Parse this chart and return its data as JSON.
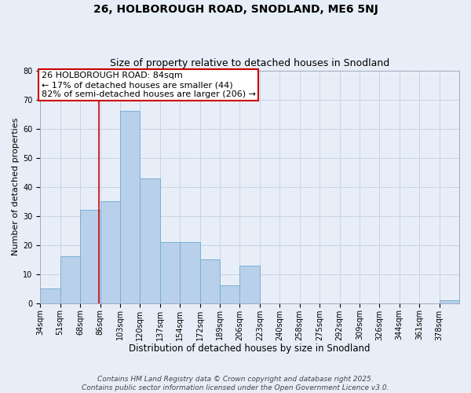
{
  "title": "26, HOLBOROUGH ROAD, SNODLAND, ME6 5NJ",
  "subtitle": "Size of property relative to detached houses in Snodland",
  "xlabel": "Distribution of detached houses by size in Snodland",
  "ylabel": "Number of detached properties",
  "bar_left_edges": [
    34,
    51,
    68,
    85,
    102,
    119,
    136,
    153,
    170,
    187,
    204,
    221,
    238,
    255,
    272,
    289,
    306,
    323,
    340,
    357,
    374
  ],
  "bar_heights": [
    5,
    16,
    32,
    35,
    66,
    43,
    21,
    21,
    15,
    6,
    13,
    0,
    0,
    0,
    0,
    0,
    0,
    0,
    0,
    0,
    1
  ],
  "bin_width": 17,
  "bar_color": "#b8d0ea",
  "bar_edge_color": "#7aafd4",
  "vline_x": 84,
  "vline_color": "#cc0000",
  "ylim": [
    0,
    80
  ],
  "xlim": [
    34,
    391
  ],
  "yticks": [
    0,
    10,
    20,
    30,
    40,
    50,
    60,
    70,
    80
  ],
  "xtick_labels": [
    "34sqm",
    "51sqm",
    "68sqm",
    "86sqm",
    "103sqm",
    "120sqm",
    "137sqm",
    "154sqm",
    "172sqm",
    "189sqm",
    "206sqm",
    "223sqm",
    "240sqm",
    "258sqm",
    "275sqm",
    "292sqm",
    "309sqm",
    "326sqm",
    "344sqm",
    "361sqm",
    "378sqm"
  ],
  "xtick_positions": [
    34,
    51,
    68,
    85,
    102,
    119,
    136,
    153,
    170,
    187,
    204,
    221,
    238,
    255,
    272,
    289,
    306,
    323,
    340,
    357,
    374
  ],
  "annotation_title": "26 HOLBOROUGH ROAD: 84sqm",
  "annotation_line1": "← 17% of detached houses are smaller (44)",
  "annotation_line2": "82% of semi-detached houses are larger (206) →",
  "annotation_box_color": "#ffffff",
  "annotation_box_edge_color": "#cc0000",
  "grid_color": "#c8d4e4",
  "bg_color": "#e8eef8",
  "footer1": "Contains HM Land Registry data © Crown copyright and database right 2025.",
  "footer2": "Contains public sector information licensed under the Open Government Licence v3.0.",
  "title_fontsize": 10,
  "subtitle_fontsize": 9,
  "xlabel_fontsize": 8.5,
  "ylabel_fontsize": 8,
  "tick_fontsize": 7,
  "annotation_fontsize": 8,
  "footer_fontsize": 6.5
}
